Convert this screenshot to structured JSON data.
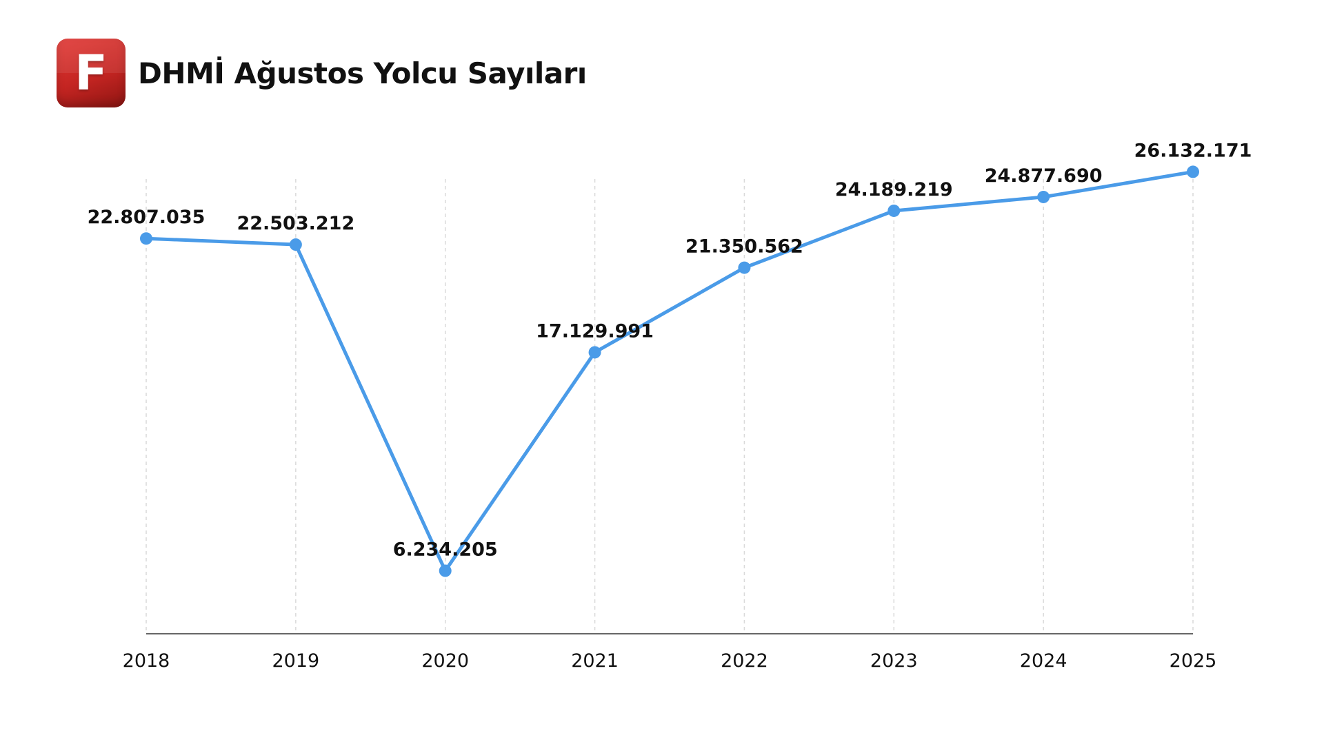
{
  "header": {
    "logo_letter": "F",
    "title": "DHMİ Ağustos Yolcu Sayıları"
  },
  "colors": {
    "line": "#4a9be8",
    "logo": "#d12f2b",
    "text": "#111111",
    "grid": "#d9d9d9",
    "axis": "#333333"
  },
  "chart_data": {
    "type": "line",
    "title": "DHMİ Ağustos Yolcu Sayıları",
    "xlabel": "",
    "ylabel": "",
    "categories": [
      "2018",
      "2019",
      "2020",
      "2021",
      "2022",
      "2023",
      "2024",
      "2025"
    ],
    "series": [
      {
        "values": [
          22807035,
          22503212,
          6234205,
          17129991,
          21350562,
          24189219,
          24877690,
          26132171
        ],
        "labels": [
          "22.807.035",
          "22.503.212",
          "6.234.205",
          "17.129.991",
          "21.350.562",
          "24.189.219",
          "24.877.690",
          "26.132.171"
        ]
      }
    ],
    "ylim": [
      0,
      26800000
    ],
    "grid": "vertical dashed",
    "legend": "none",
    "data_labels": "above points"
  }
}
